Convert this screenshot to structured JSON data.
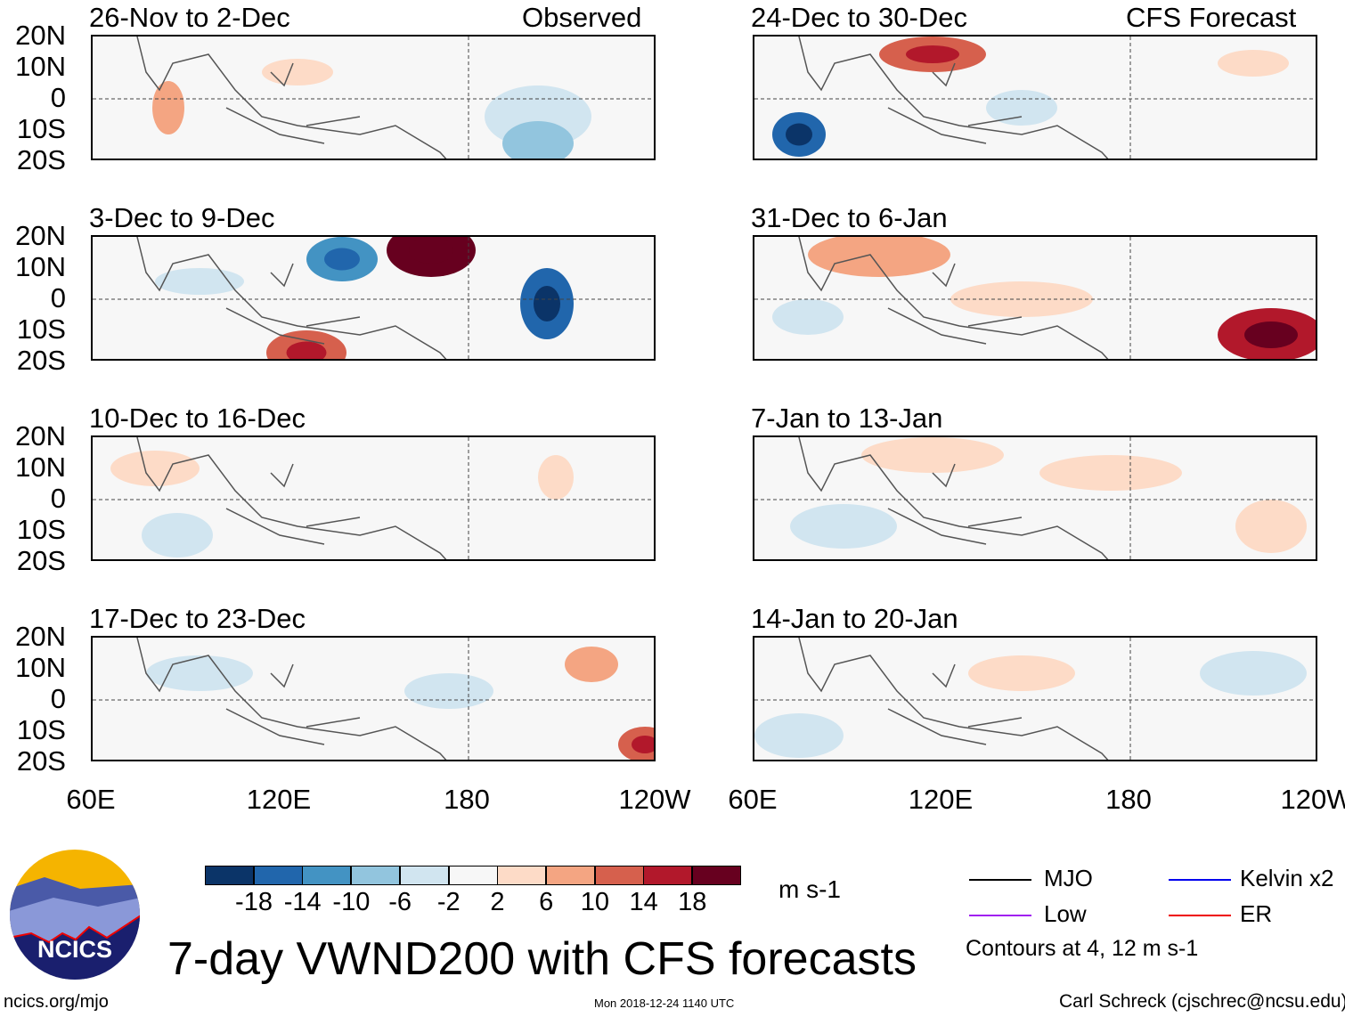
{
  "panels": {
    "left": [
      {
        "title": "26-Nov to 2-Dec",
        "tag": "Observed"
      },
      {
        "title": "3-Dec to 9-Dec"
      },
      {
        "title": "10-Dec to 16-Dec"
      },
      {
        "title": "17-Dec to 23-Dec"
      }
    ],
    "right": [
      {
        "title": "24-Dec to 30-Dec",
        "tag": "CFS Forecast"
      },
      {
        "title": "31-Dec to 6-Jan"
      },
      {
        "title": "7-Jan to 13-Jan"
      },
      {
        "title": "14-Jan to 20-Jan"
      }
    ]
  },
  "lat_labels": [
    "20N",
    "10N",
    "0",
    "10S",
    "20S"
  ],
  "lon_labels": [
    "60E",
    "120E",
    "180",
    "120W"
  ],
  "colorbar": {
    "colors": [
      "#0b3468",
      "#2166ac",
      "#4393c3",
      "#92c5de",
      "#d1e5f0",
      "#f7f7f7",
      "#fddbc7",
      "#f4a582",
      "#d6604d",
      "#b2182b",
      "#67001f"
    ],
    "labels": [
      "-18",
      "-14",
      "-10",
      "-6",
      "-2",
      "2",
      "6",
      "10",
      "14",
      "18"
    ],
    "units": "m s-1"
  },
  "legend": {
    "items": [
      {
        "label": "MJO",
        "color": "#000000"
      },
      {
        "label": "Kelvin x2",
        "color": "#0000ee"
      },
      {
        "label": "Low",
        "color": "#a020f0"
      },
      {
        "label": "ER",
        "color": "#ee0000"
      }
    ],
    "note": "Contours at 4, 12 m s-1"
  },
  "logo": {
    "text": "NCICS"
  },
  "title": "7-day VWND200 with CFS forecasts",
  "url": "ncics.org/mjo",
  "timestamp": "Mon 2018-12-24 1140 UTC",
  "credit": "Carl Schreck (cjschrec@ncsu.edu)"
}
